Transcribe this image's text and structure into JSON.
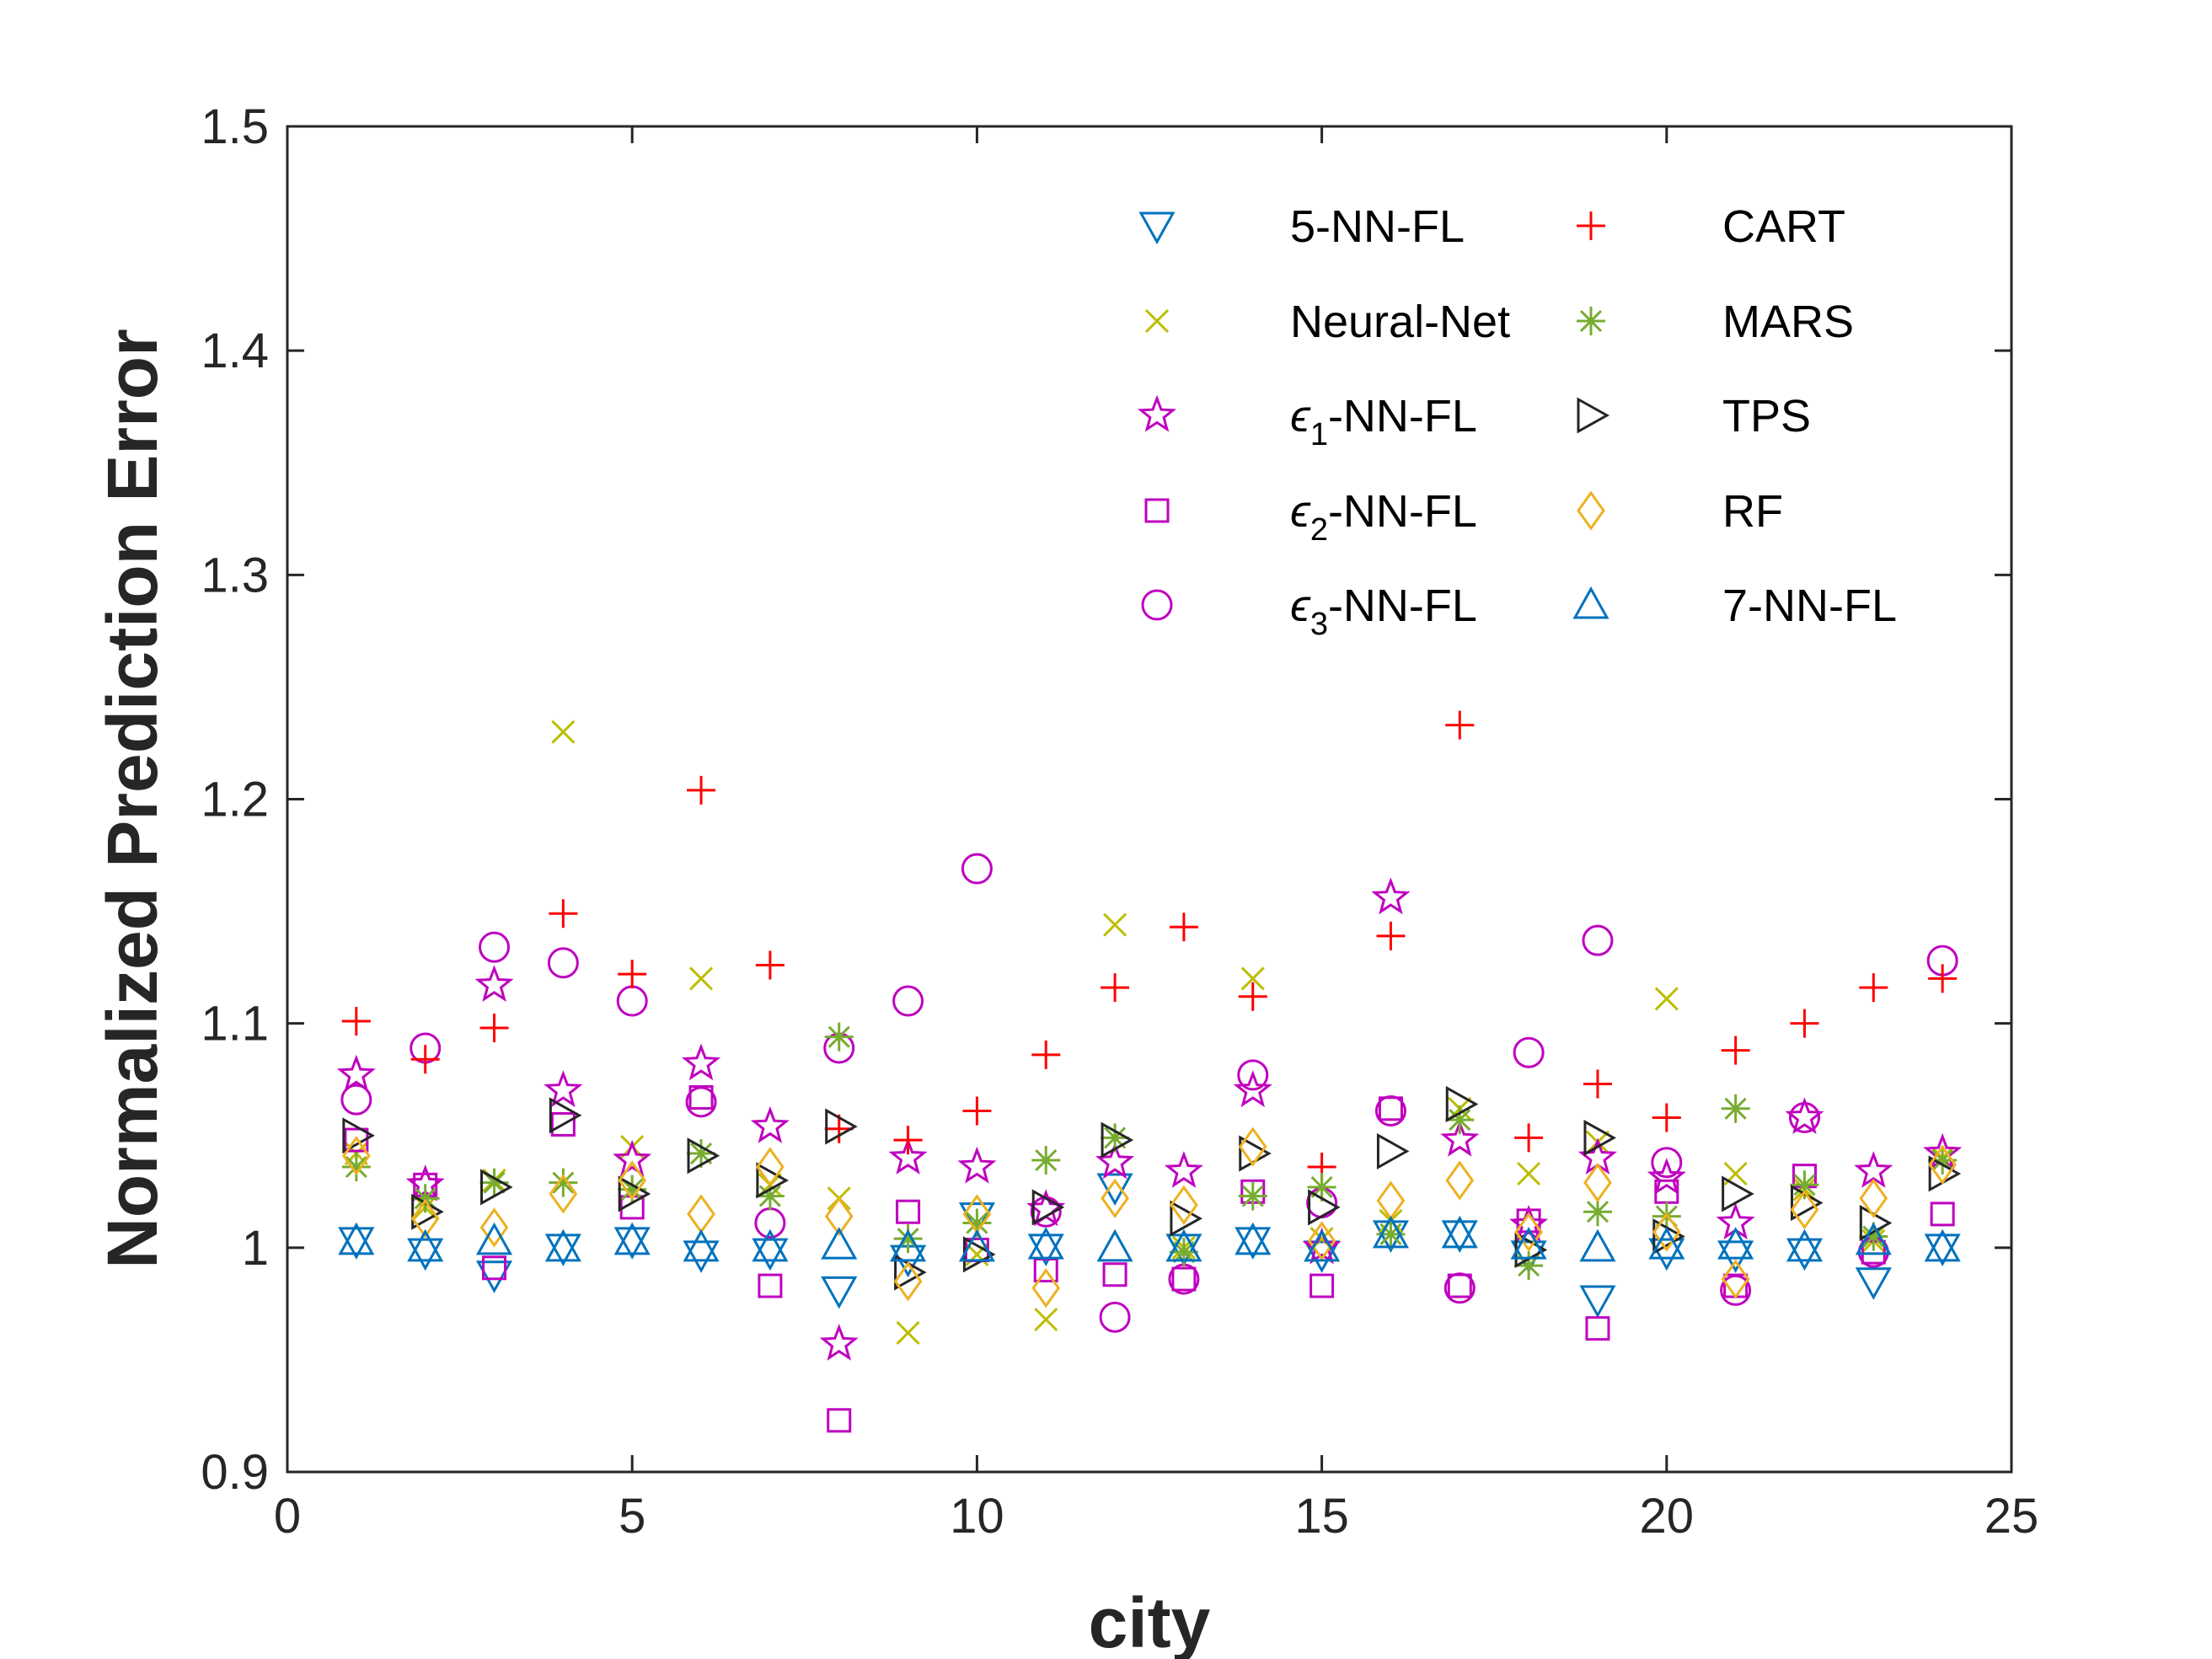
{
  "chart_data": {
    "type": "scatter",
    "title": "",
    "xlabel": "city",
    "ylabel": "Normalized Prediction Error",
    "xlim": [
      0,
      25
    ],
    "ylim": [
      0.9,
      1.5
    ],
    "xticks": [
      0,
      5,
      10,
      15,
      20,
      25
    ],
    "yticks": [
      0.9,
      1.0,
      1.1,
      1.2,
      1.3,
      1.4,
      1.5
    ],
    "xtick_labels": [
      "0",
      "5",
      "10",
      "15",
      "20",
      "25"
    ],
    "ytick_labels": [
      "0.9",
      "1",
      "1.1",
      "1.2",
      "1.3",
      "1.4",
      "1.5"
    ],
    "legend_position": "top-right",
    "x": [
      1,
      2,
      3,
      4,
      5,
      6,
      7,
      8,
      9,
      10,
      11,
      12,
      13,
      14,
      15,
      16,
      17,
      18,
      19,
      20,
      21,
      22,
      23,
      24
    ],
    "series": [
      {
        "name": "5-NN-FL",
        "marker": "triangle-down",
        "color": "#0072BD",
        "values": [
          1.003,
          0.998,
          0.988,
          1.0,
          1.003,
          0.997,
          0.998,
          0.981,
          0.995,
          1.014,
          1.0,
          1.027,
          1.0,
          1.003,
          0.997,
          1.006,
          1.006,
          0.997,
          0.977,
          0.998,
          0.997,
          0.998,
          0.985,
          1.0
        ]
      },
      {
        "name": "Neural-Net",
        "marker": "x",
        "color": "#BDBD00",
        "values": [
          1.042,
          1.018,
          1.03,
          1.23,
          1.045,
          1.12,
          1.028,
          1.022,
          0.962,
          0.997,
          0.968,
          1.144,
          1.0,
          1.12,
          1.004,
          1.012,
          1.062,
          1.033,
          1.047,
          1.111,
          1.033,
          1.026,
          1.003,
          1.04
        ]
      },
      {
        "name": "ε₁-NN-FL",
        "marker": "star",
        "color": "#BF00BF",
        "values": [
          1.077,
          1.028,
          1.117,
          1.07,
          1.039,
          1.082,
          1.054,
          0.957,
          1.04,
          1.036,
          1.017,
          1.038,
          1.034,
          1.07,
          1.0,
          1.156,
          1.048,
          1.01,
          1.04,
          1.031,
          1.011,
          1.058,
          1.034,
          1.042
        ]
      },
      {
        "name": "ε₂-NN-FL",
        "marker": "square",
        "color": "#BF00BF",
        "values": [
          1.048,
          1.028,
          0.991,
          1.055,
          1.018,
          1.067,
          0.983,
          0.923,
          1.016,
          0.999,
          0.99,
          0.988,
          0.986,
          1.025,
          0.983,
          1.062,
          0.983,
          1.012,
          0.964,
          1.025,
          0.983,
          1.032,
          0.998,
          1.015
        ]
      },
      {
        "name": "ε₃-NN-FL",
        "marker": "circle",
        "color": "#BF00BF",
        "values": [
          1.066,
          1.089,
          1.134,
          1.127,
          1.11,
          1.065,
          1.011,
          1.089,
          1.11,
          1.169,
          1.016,
          0.969,
          0.986,
          1.077,
          1.02,
          1.061,
          0.982,
          1.087,
          1.137,
          1.038,
          0.981,
          1.058,
          0.998,
          1.128
        ]
      },
      {
        "name": "CART",
        "marker": "plus",
        "color": "#FF0000",
        "values": [
          1.101,
          1.084,
          1.098,
          1.149,
          1.122,
          1.204,
          1.126,
          1.053,
          1.048,
          1.061,
          1.086,
          1.116,
          1.143,
          1.112,
          1.036,
          1.139,
          1.233,
          1.049,
          1.073,
          1.058,
          1.088,
          1.1,
          1.116,
          1.12
        ]
      },
      {
        "name": "MARS",
        "marker": "asterisk",
        "color": "#77AC30",
        "values": [
          1.036,
          1.022,
          1.029,
          1.029,
          1.026,
          1.042,
          1.023,
          1.094,
          1.004,
          1.011,
          1.039,
          1.049,
          0.998,
          1.023,
          1.027,
          1.006,
          1.057,
          0.992,
          1.016,
          1.014,
          1.062,
          1.028,
          1.005,
          1.039
        ]
      },
      {
        "name": "TPS",
        "marker": "triangle-right",
        "color": "#262626",
        "values": [
          1.05,
          1.016,
          1.027,
          1.059,
          1.024,
          1.041,
          1.03,
          1.054,
          0.989,
          0.997,
          1.018,
          1.048,
          1.013,
          1.042,
          1.018,
          1.043,
          1.064,
          0.999,
          1.049,
          1.005,
          1.024,
          1.02,
          1.011,
          1.033
        ]
      },
      {
        "name": "RF",
        "marker": "diamond",
        "color": "#EDB120",
        "values": [
          1.041,
          1.013,
          1.009,
          1.024,
          1.03,
          1.015,
          1.036,
          1.014,
          0.985,
          1.015,
          0.982,
          1.022,
          1.019,
          1.045,
          1.003,
          1.021,
          1.03,
          1.007,
          1.029,
          1.007,
          0.986,
          1.017,
          1.022,
          1.037
        ]
      },
      {
        "name": "7-NN-FL",
        "marker": "triangle-up",
        "color": "#0072BD",
        "values": [
          1.003,
          1.0,
          1.003,
          1.0,
          1.003,
          1.0,
          1.0,
          1.001,
          1.0,
          1.0,
          1.001,
          1.0,
          1.0,
          1.003,
          1.0,
          1.006,
          1.006,
          1.001,
          1.0,
          1.001,
          1.001,
          1.0,
          1.003,
          1.0
        ]
      }
    ]
  }
}
